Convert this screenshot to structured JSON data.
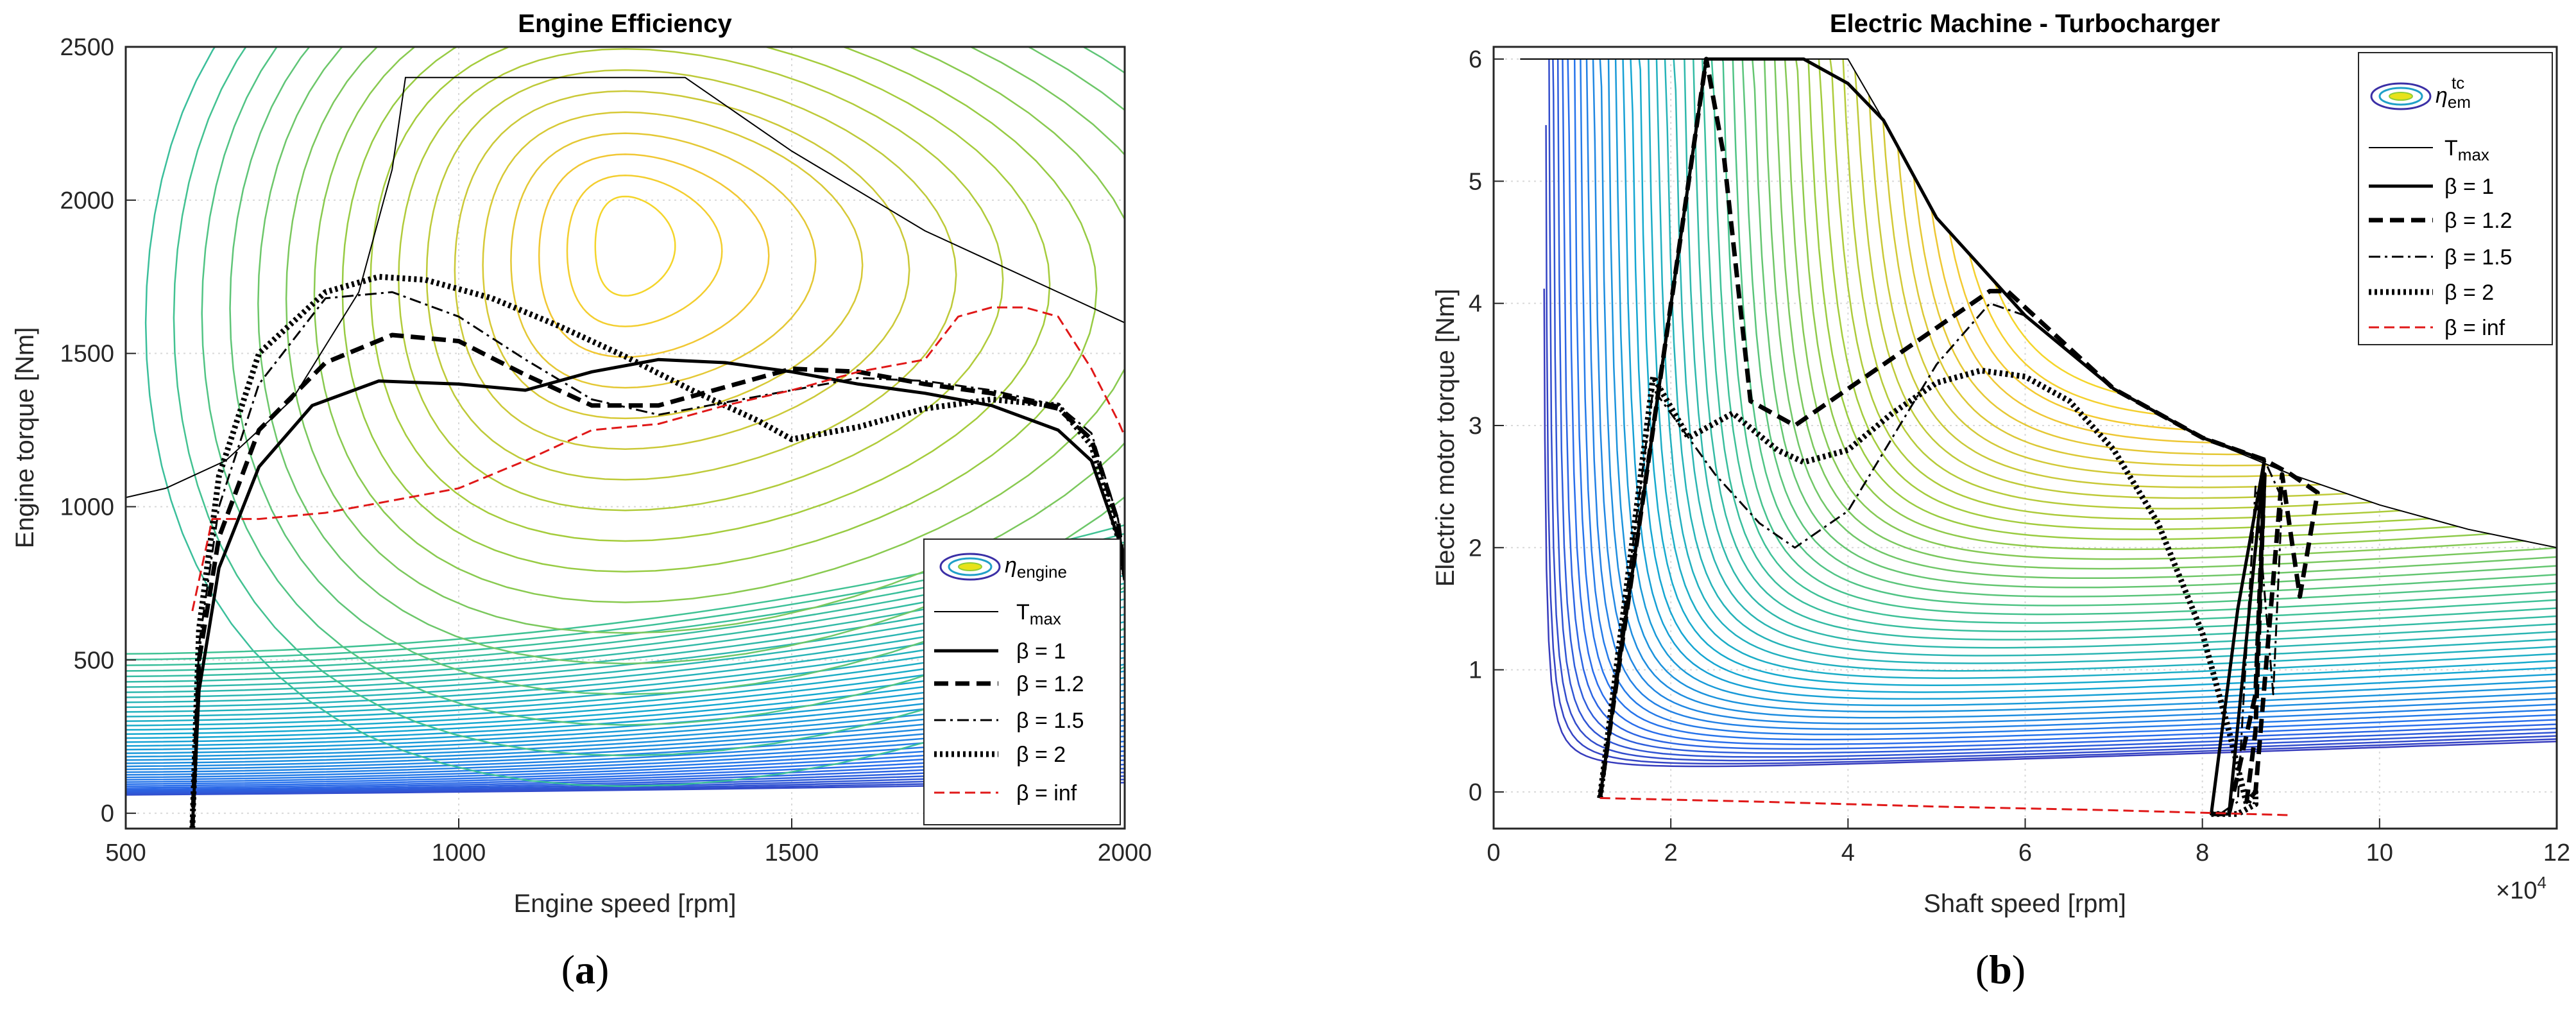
{
  "chart_data": [
    {
      "type": "line",
      "panel": "(a)",
      "subcaption_open": "(",
      "subcaption_letter": "a",
      "subcaption_close": ")",
      "title": "Engine Efficiency",
      "xlabel": "Engine speed [rpm]",
      "ylabel": "Engine torque [Nm]",
      "xlim": [
        500,
        2000
      ],
      "ylim": [
        -50,
        2500
      ],
      "xticks": [
        500,
        1000,
        1500,
        2000
      ],
      "xtick_labels": [
        "500",
        "1000",
        "1500",
        "2000"
      ],
      "yticks": [
        0,
        500,
        1000,
        1500,
        2000,
        2500
      ],
      "ytick_labels": [
        "0",
        "500",
        "1000",
        "1500",
        "2000",
        "2500"
      ],
      "grid": true,
      "legend_position": "lower-right",
      "legend": {
        "contour_symbol": "η",
        "contour_sub": "engine",
        "contour_sup": "",
        "tmax_main": "T",
        "tmax_sub": "max",
        "beta_1": "β = 1",
        "beta_12": "β = 1.2",
        "beta_15": "β = 1.5",
        "beta_2": "β = 2",
        "beta_inf": "β = inf"
      },
      "contour_center": [
        1250,
        1850
      ],
      "tmax": {
        "x": [
          500,
          560,
          650,
          750,
          850,
          900,
          920,
          1340,
          1500,
          1700,
          2000
        ],
        "y": [
          1030,
          1060,
          1150,
          1350,
          1700,
          2100,
          2400,
          2400,
          2160,
          1900,
          1600
        ]
      },
      "series": [
        {
          "name": "β = 1",
          "style": "solid",
          "x": [
            600,
            610,
            640,
            700,
            780,
            880,
            1000,
            1100,
            1200,
            1300,
            1400,
            1500,
            1600,
            1700,
            1800,
            1900,
            1950,
            1990,
            2000
          ],
          "y": [
            -50,
            400,
            800,
            1130,
            1330,
            1410,
            1400,
            1380,
            1440,
            1480,
            1470,
            1440,
            1400,
            1370,
            1330,
            1250,
            1150,
            900,
            760
          ]
        },
        {
          "name": "β = 1.2",
          "style": "dashed",
          "x": [
            600,
            610,
            640,
            700,
            800,
            900,
            1000,
            1100,
            1200,
            1300,
            1400,
            1500,
            1600,
            1700,
            1800,
            1900,
            1950,
            1990,
            2000
          ],
          "y": [
            -50,
            500,
            900,
            1250,
            1470,
            1560,
            1540,
            1430,
            1330,
            1330,
            1390,
            1450,
            1440,
            1400,
            1370,
            1320,
            1220,
            950,
            780
          ]
        },
        {
          "name": "β = 1.5",
          "style": "dashdot",
          "x": [
            600,
            610,
            640,
            700,
            800,
            900,
            1000,
            1100,
            1200,
            1300,
            1400,
            1500,
            1600,
            1700,
            1800,
            1900,
            1950,
            1990,
            2000
          ],
          "y": [
            -50,
            550,
            1000,
            1400,
            1680,
            1700,
            1620,
            1480,
            1350,
            1300,
            1340,
            1380,
            1420,
            1410,
            1380,
            1330,
            1240,
            960,
            790
          ]
        },
        {
          "name": "β = 2",
          "style": "dotted",
          "x": [
            600,
            610,
            640,
            700,
            800,
            880,
            950,
            1050,
            1150,
            1250,
            1350,
            1450,
            1500,
            1600,
            1700,
            1800,
            1900,
            1950,
            1990,
            2000
          ],
          "y": [
            -50,
            600,
            1100,
            1500,
            1700,
            1750,
            1740,
            1680,
            1590,
            1490,
            1380,
            1280,
            1220,
            1260,
            1320,
            1350,
            1330,
            1200,
            900,
            780
          ]
        },
        {
          "name": "β = inf",
          "style": "red-dashed",
          "x": [
            600,
            630,
            700,
            800,
            900,
            1000,
            1100,
            1200,
            1300,
            1400,
            1500,
            1600,
            1700,
            1750,
            1800,
            1850,
            1900,
            1950,
            1990,
            2000
          ],
          "y": [
            660,
            960,
            960,
            980,
            1020,
            1060,
            1150,
            1250,
            1270,
            1330,
            1380,
            1440,
            1480,
            1620,
            1650,
            1650,
            1620,
            1450,
            1280,
            1230
          ]
        }
      ]
    },
    {
      "type": "line",
      "panel": "(b)",
      "subcaption_open": "(",
      "subcaption_letter": "b",
      "subcaption_close": ")",
      "title": "Electric Machine - Turbocharger",
      "xlabel": "Shaft speed [rpm]",
      "ylabel": "Electric motor torque [Nm]",
      "xlim": [
        0,
        12
      ],
      "ylim": [
        -0.3,
        6.1
      ],
      "x_exponent_base": "×10",
      "x_exponent_power": "4",
      "xticks": [
        0,
        2,
        4,
        6,
        8,
        10,
        12
      ],
      "xtick_labels": [
        "0",
        "2",
        "4",
        "6",
        "8",
        "10",
        "12"
      ],
      "yticks": [
        0,
        1,
        2,
        3,
        4,
        5,
        6
      ],
      "ytick_labels": [
        "0",
        "1",
        "2",
        "3",
        "4",
        "5",
        "6"
      ],
      "grid": true,
      "legend_position": "top-right",
      "legend": {
        "contour_symbol": "η",
        "contour_sub": "em",
        "contour_sup": "tc",
        "tmax_main": "T",
        "tmax_sub": "max",
        "beta_1": "β = 1",
        "beta_12": "β = 1.2",
        "beta_15": "β = 1.5",
        "beta_2": "β = 2",
        "beta_inf": "β = inf"
      },
      "tmax": {
        "x": [
          0.3,
          4.0,
          4.4,
          5.0,
          6.0,
          7.0,
          8.0,
          9.0,
          10.0,
          11.0,
          12.0
        ],
        "y": [
          6.0,
          6.0,
          5.5,
          4.7,
          3.9,
          3.3,
          2.9,
          2.6,
          2.35,
          2.15,
          2.0
        ]
      },
      "series": [
        {
          "name": "β = 1",
          "style": "solid",
          "x": [
            1.2,
            2.4,
            3.5,
            4.0,
            4.4,
            5.0,
            6.0,
            7.0,
            8.0,
            8.7,
            8.4,
            8.1,
            8.3,
            8.7
          ],
          "y": [
            -0.05,
            6.0,
            6.0,
            5.8,
            5.5,
            4.7,
            3.9,
            3.3,
            2.9,
            2.72,
            1.5,
            -0.18,
            -0.18,
            2.72
          ]
        },
        {
          "name": "β = 1.2",
          "style": "dashed",
          "x": [
            1.2,
            2.4,
            2.6,
            2.9,
            3.4,
            4.0,
            5.0,
            5.6,
            5.8,
            7.0,
            8.0,
            8.7,
            9.0,
            9.3,
            9.1,
            8.9,
            8.6,
            8.5,
            8.6,
            8.7,
            8.6,
            8.3,
            8.1
          ],
          "y": [
            -0.05,
            6.0,
            5.2,
            3.2,
            3.0,
            3.3,
            3.8,
            4.1,
            4.1,
            3.3,
            2.9,
            2.72,
            2.6,
            2.45,
            1.6,
            2.6,
            0.0,
            -0.08,
            0.5,
            2.6,
            0.8,
            -0.18,
            -0.18
          ]
        },
        {
          "name": "β = 1.5",
          "style": "dashdot",
          "x": [
            1.2,
            1.8,
            2.5,
            3.0,
            3.4,
            4.0,
            5.0,
            5.6,
            6.0,
            7.0,
            8.0,
            8.7,
            8.9,
            8.8,
            8.6,
            8.4,
            8.2
          ],
          "y": [
            -0.05,
            3.3,
            2.6,
            2.2,
            2.0,
            2.3,
            3.5,
            4.0,
            3.9,
            3.3,
            2.9,
            2.72,
            2.4,
            0.8,
            2.5,
            -0.08,
            -0.18
          ]
        },
        {
          "name": "β = 2",
          "style": "dotted",
          "x": [
            1.2,
            1.8,
            2.2,
            2.7,
            3.2,
            3.5,
            4.0,
            4.5,
            5.0,
            5.5,
            6.0,
            6.5,
            7.0,
            7.5,
            8.0,
            8.3,
            8.5,
            8.6,
            8.6,
            8.4,
            8.1
          ],
          "y": [
            -0.05,
            3.4,
            2.9,
            3.1,
            2.8,
            2.7,
            2.8,
            3.1,
            3.35,
            3.45,
            3.4,
            3.2,
            2.8,
            2.2,
            1.3,
            0.5,
            -0.1,
            0.0,
            -0.1,
            -0.18,
            -0.18
          ]
        },
        {
          "name": "β = inf",
          "style": "red-dashed",
          "x": [
            1.2,
            3.0,
            5.0,
            7.0,
            8.0,
            9.0
          ],
          "y": [
            -0.05,
            -0.08,
            -0.12,
            -0.15,
            -0.17,
            -0.19
          ]
        }
      ]
    }
  ]
}
